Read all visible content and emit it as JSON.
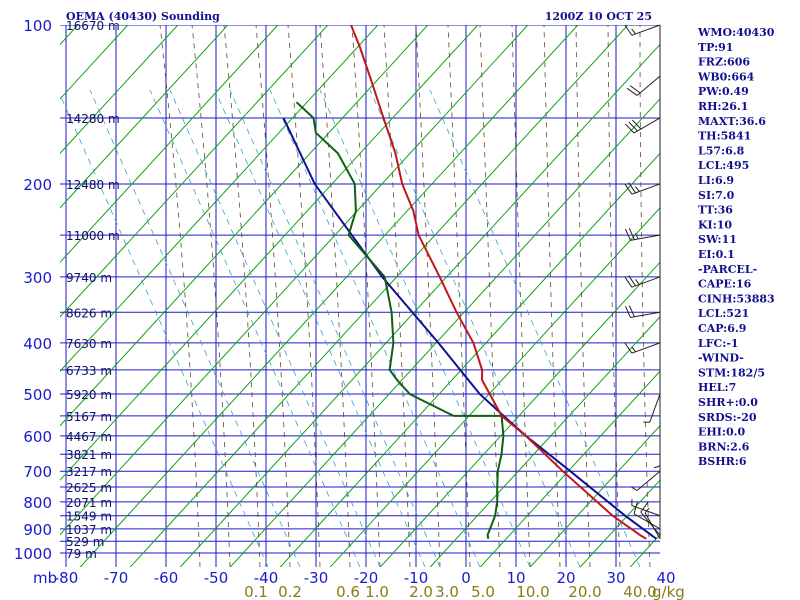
{
  "header": {
    "station": "OEMA (40430) Sounding",
    "time": "1200Z 10 OCT 25"
  },
  "colors": {
    "isobar": "#1a1acc",
    "isotherm": "#1a1acc",
    "dry_adiabat": "#12a012",
    "moist_adiabat": "#5a4a2a",
    "mixing_ratio": "#3aa0c8",
    "temperature": "#c01818",
    "dewpoint": "#106010",
    "parcel": "#101090",
    "wind": "#222222"
  },
  "indices": [
    "WMO:40430",
    "TP:91",
    "FRZ:606",
    "WB0:664",
    "PW:0.49",
    "RH:26.1",
    "MAXT:36.6",
    "TH:5841",
    "L57:6.8",
    "LCL:495",
    "LI:6.9",
    "SI:7.0",
    "TT:36",
    "KI:10",
    "SW:11",
    "EI:0.1",
    "-PARCEL-",
    "CAPE:16",
    "CINH:53883",
    "LCL:521",
    "CAP:6.9",
    "LFC:-1",
    "-WIND-",
    "STM:182/5",
    "HEL:7",
    "SHR+:0.0",
    "SRDS:-20",
    "EHI:0.0",
    "BRN:2.6",
    "BSHR:6"
  ],
  "chart_data": {
    "type": "skew-t log-p sounding",
    "title": "OEMA (40430) Sounding",
    "valid_time": "1200Z 10 OCT 25",
    "pressure_unit_label": "mb",
    "pressure_levels": [
      100,
      200,
      300,
      400,
      500,
      600,
      700,
      800,
      900,
      1000
    ],
    "temperature_ticks": [
      -80,
      -70,
      -60,
      -50,
      -40,
      -30,
      -20,
      -10,
      0,
      10,
      20,
      30,
      40
    ],
    "temperature_tick_labels": [
      "-80",
      "-70",
      "-60",
      "-50",
      "-40",
      "-30",
      "-20",
      "-10",
      "0",
      "10",
      "20",
      "30",
      "40"
    ],
    "mixing_ratio_unit": "g/kg",
    "mixing_ratio_labels": [
      "0.1",
      "0.2",
      "0.6",
      "1.0",
      "2.0",
      "3.0",
      "5.0",
      "10.0",
      "20.0",
      "40.0"
    ],
    "height_labels": [
      {
        "p": 100,
        "text": "16670 m"
      },
      {
        "p": 150,
        "text": "14280 m"
      },
      {
        "p": 200,
        "text": "12480 m"
      },
      {
        "p": 250,
        "text": "11000 m"
      },
      {
        "p": 300,
        "text": "9740 m"
      },
      {
        "p": 350,
        "text": "8626 m"
      },
      {
        "p": 400,
        "text": "7630 m"
      },
      {
        "p": 450,
        "text": "6733 m"
      },
      {
        "p": 500,
        "text": "5920 m"
      },
      {
        "p": 550,
        "text": "5167 m"
      },
      {
        "p": 600,
        "text": "4467 m"
      },
      {
        "p": 650,
        "text": "3821 m"
      },
      {
        "p": 700,
        "text": "3217 m"
      },
      {
        "p": 750,
        "text": "2625 m"
      },
      {
        "p": 800,
        "text": "2071 m"
      },
      {
        "p": 850,
        "text": "1549 m"
      },
      {
        "p": 900,
        "text": "1037 m"
      },
      {
        "p": 950,
        "text": "529 m"
      },
      {
        "p": 1000,
        "text": "79 m"
      }
    ],
    "temperature_profile": [
      [
        940,
        34.6
      ],
      [
        925,
        33.0
      ],
      [
        850,
        25.5
      ],
      [
        700,
        11.0
      ],
      [
        600,
        0.0
      ],
      [
        550,
        -6.9
      ],
      [
        500,
        -11.5
      ],
      [
        470,
        -14.5
      ],
      [
        450,
        -15.5
      ],
      [
        400,
        -20.0
      ],
      [
        350,
        -26.5
      ],
      [
        300,
        -33.5
      ],
      [
        250,
        -42.0
      ],
      [
        225,
        -45.5
      ],
      [
        200,
        -50.5
      ],
      [
        175,
        -55.0
      ],
      [
        150,
        -61.0
      ],
      [
        125,
        -68.0
      ],
      [
        110,
        -73.0
      ],
      [
        100,
        -77.0
      ]
    ],
    "dewpoint_profile": [
      [
        940,
        3.0
      ],
      [
        925,
        2.5
      ],
      [
        850,
        2.0
      ],
      [
        800,
        1.0
      ],
      [
        750,
        -0.5
      ],
      [
        700,
        -2.0
      ],
      [
        650,
        -3.0
      ],
      [
        600,
        -4.5
      ],
      [
        550,
        -6.9
      ],
      [
        550,
        -16.5
      ],
      [
        500,
        -27.5
      ],
      [
        470,
        -31.5
      ],
      [
        450,
        -34.0
      ],
      [
        400,
        -36.0
      ],
      [
        350,
        -39.5
      ],
      [
        300,
        -44.5
      ],
      [
        250,
        -56.0
      ],
      [
        225,
        -57.0
      ],
      [
        200,
        -60.0
      ],
      [
        175,
        -66.5
      ],
      [
        160,
        -73.0
      ],
      [
        150,
        -75.0
      ],
      [
        140,
        -80.0
      ]
    ],
    "parcel_profile": [
      [
        940,
        36.6
      ],
      [
        850,
        28.0
      ],
      [
        700,
        12.5
      ],
      [
        600,
        0.0
      ],
      [
        550,
        -6.5
      ],
      [
        500,
        -13.5
      ],
      [
        400,
        -27.0
      ],
      [
        300,
        -45.0
      ],
      [
        200,
        -68.0
      ],
      [
        150,
        -81.0
      ]
    ],
    "winds": [
      {
        "p": 940,
        "dir": 330,
        "spd": 5
      },
      {
        "p": 925,
        "dir": 320,
        "spd": 10
      },
      {
        "p": 900,
        "dir": 300,
        "spd": 10
      },
      {
        "p": 850,
        "dir": 290,
        "spd": 5
      },
      {
        "p": 700,
        "dir": 230,
        "spd": 5
      },
      {
        "p": 600,
        "dir": 180,
        "spd": 5
      },
      {
        "p": 500,
        "dir": 200,
        "spd": 5
      },
      {
        "p": 400,
        "dir": 250,
        "spd": 15
      },
      {
        "p": 350,
        "dir": 260,
        "spd": 20
      },
      {
        "p": 300,
        "dir": 250,
        "spd": 25
      },
      {
        "p": 250,
        "dir": 260,
        "spd": 25
      },
      {
        "p": 200,
        "dir": 250,
        "spd": 25
      },
      {
        "p": 150,
        "dir": 240,
        "spd": 30
      },
      {
        "p": 125,
        "dir": 230,
        "spd": 20
      },
      {
        "p": 100,
        "dir": 250,
        "spd": 15
      }
    ]
  }
}
